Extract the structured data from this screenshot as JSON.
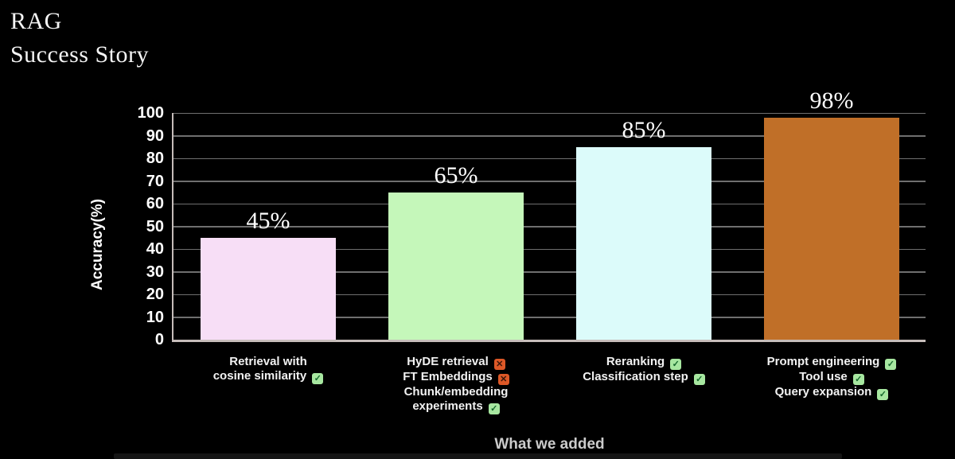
{
  "slide": {
    "title_lines": [
      "RAG",
      "Success Story"
    ]
  },
  "chart_data": {
    "type": "bar",
    "title": "RAG Success Story",
    "ylabel": "Accuracy(%)",
    "xlabel": "What we added",
    "ylim": [
      0,
      100
    ],
    "yticks": [
      0,
      10,
      20,
      30,
      40,
      50,
      60,
      70,
      80,
      90,
      100
    ],
    "grid": true,
    "legend_position": "none",
    "values": [
      45,
      65,
      85,
      98
    ],
    "value_labels": [
      "45%",
      "65%",
      "85%",
      "98%"
    ],
    "bar_colors": [
      "#f7def6",
      "#c5f7ba",
      "#dcfbfa",
      "#c06f28"
    ],
    "categories": [
      {
        "lines": [
          {
            "text": "Retrieval with",
            "badge": null
          },
          {
            "text": "cosine similarity",
            "badge": "check"
          }
        ]
      },
      {
        "lines": [
          {
            "text": "HyDE retrieval",
            "badge": "cross"
          },
          {
            "text": "FT Embeddings",
            "badge": "cross"
          },
          {
            "text": "Chunk/embedding",
            "badge": null
          },
          {
            "text": "experiments",
            "badge": "check"
          }
        ]
      },
      {
        "lines": [
          {
            "text": "Reranking",
            "badge": "check"
          },
          {
            "text": "Classification step",
            "badge": "check"
          }
        ]
      },
      {
        "lines": [
          {
            "text": "Prompt engineering",
            "badge": "check"
          },
          {
            "text": "Tool use",
            "badge": "check"
          },
          {
            "text": "Query expansion",
            "badge": "check"
          }
        ]
      }
    ],
    "badge_glyphs": {
      "check": "✓",
      "cross": "✕"
    },
    "badge_colors": {
      "check_bg": "#a7e7a0",
      "check_glyph": "#15682c",
      "cross_bg": "#dd5827",
      "cross_glyph": "#38160a"
    }
  },
  "colors": {
    "background": "#000000",
    "axis": "#c6bdba",
    "gridline": "#6f6f6f",
    "title_text": "#f4f4f4",
    "tick_text": "#ffffff",
    "muted_text": "#cbcbcb"
  }
}
